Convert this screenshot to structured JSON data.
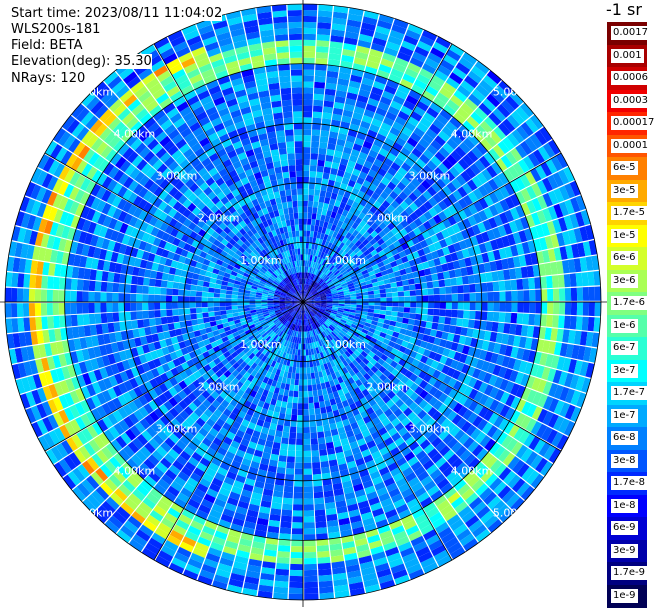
{
  "info": {
    "start_time": "Start time: 2023/08/11 11:04:02",
    "instrument": "WLS200s-181",
    "field": "Field: BETA",
    "elevation": "Elevation(deg): 35.30",
    "nrays": "NRays: 120"
  },
  "colorbar": {
    "unit_label": "-1 sr",
    "labels": [
      "0.0017",
      "0.001",
      "0.0006",
      "0.0003",
      "0.00017",
      "0.0001",
      "6e-5",
      "3e-5",
      "1.7e-5",
      "1e-5",
      "6e-6",
      "3e-6",
      "1.7e-6",
      "1e-6",
      "6e-7",
      "3e-7",
      "1.7e-7",
      "1e-7",
      "6e-8",
      "3e-8",
      "1.7e-8",
      "1e-8",
      "6e-9",
      "3e-9",
      "1.7e-9",
      "1e-9"
    ],
    "colors": [
      "#7a0000",
      "#a80000",
      "#cf0000",
      "#f20000",
      "#ff2600",
      "#ff5500",
      "#ff8000",
      "#ffaa00",
      "#ffd400",
      "#ffff00",
      "#d4ff2a",
      "#aaff55",
      "#80ff80",
      "#55ffaa",
      "#2affd4",
      "#00ffff",
      "#00d4ff",
      "#00aaff",
      "#0080ff",
      "#0055ff",
      "#002aff",
      "#0000ff",
      "#0000d4",
      "#0000aa",
      "#000080",
      "#000055"
    ]
  },
  "chart_data": {
    "type": "heatmap",
    "projection": "polar PPI scan",
    "field": "BETA",
    "elevation_deg": 35.3,
    "nrays": 120,
    "range_max_km": 5.0,
    "ring_labels": [
      "1.00km",
      "2.00km",
      "3.00km",
      "4.00km",
      "5.00km"
    ],
    "ring_ranges_km": [
      1.0,
      2.0,
      3.0,
      4.0,
      5.0
    ],
    "spoke_angles_deg": [
      0,
      30,
      60,
      90,
      120,
      150,
      180,
      210,
      240,
      270,
      300,
      330
    ],
    "scale": "log",
    "value_range": [
      1e-09,
      0.0017
    ],
    "features": [
      {
        "description_range_km": [
          0,
          0.5
        ],
        "typical_value": 1e-08
      },
      {
        "description_range_km": [
          0.5,
          4.0
        ],
        "typical_value": 6e-08
      },
      {
        "description_range_km": [
          4.0,
          4.4
        ],
        "typical_value": 1e-06
      },
      {
        "description_range_km": [
          4.4,
          4.6
        ],
        "typical_value": 1e-05,
        "azimuth_range_deg": [
          200,
          340
        ]
      },
      {
        "description_range_km": [
          4.6,
          5.0
        ],
        "typical_value": 6e-08
      }
    ]
  }
}
